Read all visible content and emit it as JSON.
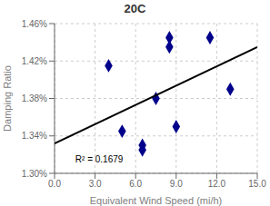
{
  "chart_data": {
    "type": "scatter",
    "title": "20C",
    "xlabel": "Equivalent Wind Speed (mi/h)",
    "ylabel": "Damping Ratio",
    "xlim": [
      0.0,
      15.0
    ],
    "ylim": [
      0.013,
      0.0146
    ],
    "xticks": [
      {
        "value": 0.0,
        "label": "0.0"
      },
      {
        "value": 3.0,
        "label": "3.0"
      },
      {
        "value": 6.0,
        "label": "6.0"
      },
      {
        "value": 9.0,
        "label": "9.0"
      },
      {
        "value": 12.0,
        "label": "12.0"
      },
      {
        "value": 15.0,
        "label": "15.0"
      }
    ],
    "yticks": [
      {
        "value": 0.013,
        "label": "1.30%"
      },
      {
        "value": 0.0134,
        "label": "1.34%"
      },
      {
        "value": 0.0138,
        "label": "1.38%"
      },
      {
        "value": 0.0142,
        "label": "1.42%"
      },
      {
        "value": 0.0146,
        "label": "1.46%"
      }
    ],
    "grid": true,
    "series": [
      {
        "type": "scatter",
        "marker": "diamond",
        "color": "#00008B",
        "x": [
          4.0,
          5.0,
          6.5,
          6.5,
          7.5,
          8.5,
          8.5,
          9.0,
          11.5,
          13.0
        ],
        "values": [
          0.01415,
          0.01345,
          0.01325,
          0.0133,
          0.0138,
          0.01445,
          0.01435,
          0.0135,
          0.01445,
          0.0139
        ]
      },
      {
        "type": "line",
        "line_style": "solid",
        "color": "#000000",
        "x": [
          0.0,
          15.0
        ],
        "values": [
          0.01332,
          0.01435
        ]
      }
    ],
    "annotations": [
      {
        "text": "R² = 0.1679",
        "x": 1.2,
        "y": 0.01315
      }
    ]
  }
}
